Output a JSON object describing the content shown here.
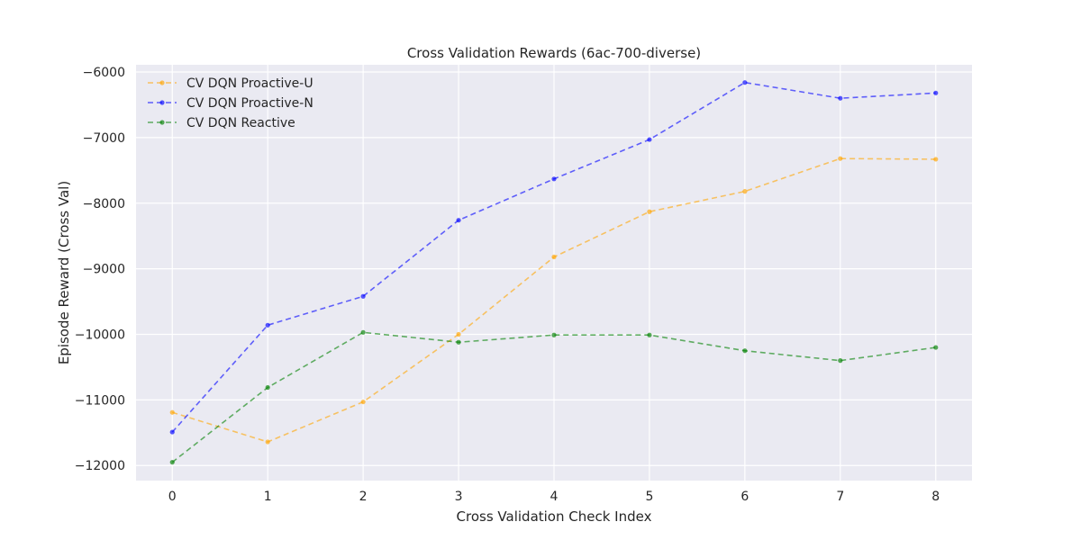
{
  "chart_data": {
    "type": "line",
    "title": "Cross Validation Rewards (6ac-700-diverse)",
    "xlabel": "Cross Validation Check Index",
    "ylabel": "Episode Reward (Cross Val)",
    "x": [
      0,
      1,
      2,
      3,
      4,
      5,
      6,
      7,
      8
    ],
    "x_ticks": [
      "0",
      "1",
      "2",
      "3",
      "4",
      "5",
      "6",
      "7",
      "8"
    ],
    "y_ticks": [
      "−6000",
      "−7000",
      "−8000",
      "−9000",
      "−10000",
      "−11000",
      "−12000"
    ],
    "y_tick_values": [
      -6000,
      -7000,
      -8000,
      -9000,
      -10000,
      -11000,
      -12000
    ],
    "xlim": [
      -0.38,
      8.38
    ],
    "ylim": [
      -12230,
      -5890
    ],
    "grid": true,
    "legend_position": "top-left",
    "line_style": "dashed",
    "series": [
      {
        "name": "CV DQN Proactive-U",
        "color": "#ffa500",
        "values": [
          -11190,
          -11640,
          -11030,
          -10000,
          -8820,
          -8130,
          -7820,
          -7320,
          -7330
        ]
      },
      {
        "name": "CV DQN Proactive-N",
        "color": "#0000ff",
        "values": [
          -11490,
          -9860,
          -9420,
          -8260,
          -7630,
          -7030,
          -6160,
          -6400,
          -6320
        ]
      },
      {
        "name": "CV DQN Reactive",
        "color": "#008000",
        "values": [
          -11950,
          -10810,
          -9970,
          -10120,
          -10010,
          -10010,
          -10250,
          -10400,
          -10200
        ]
      }
    ]
  }
}
